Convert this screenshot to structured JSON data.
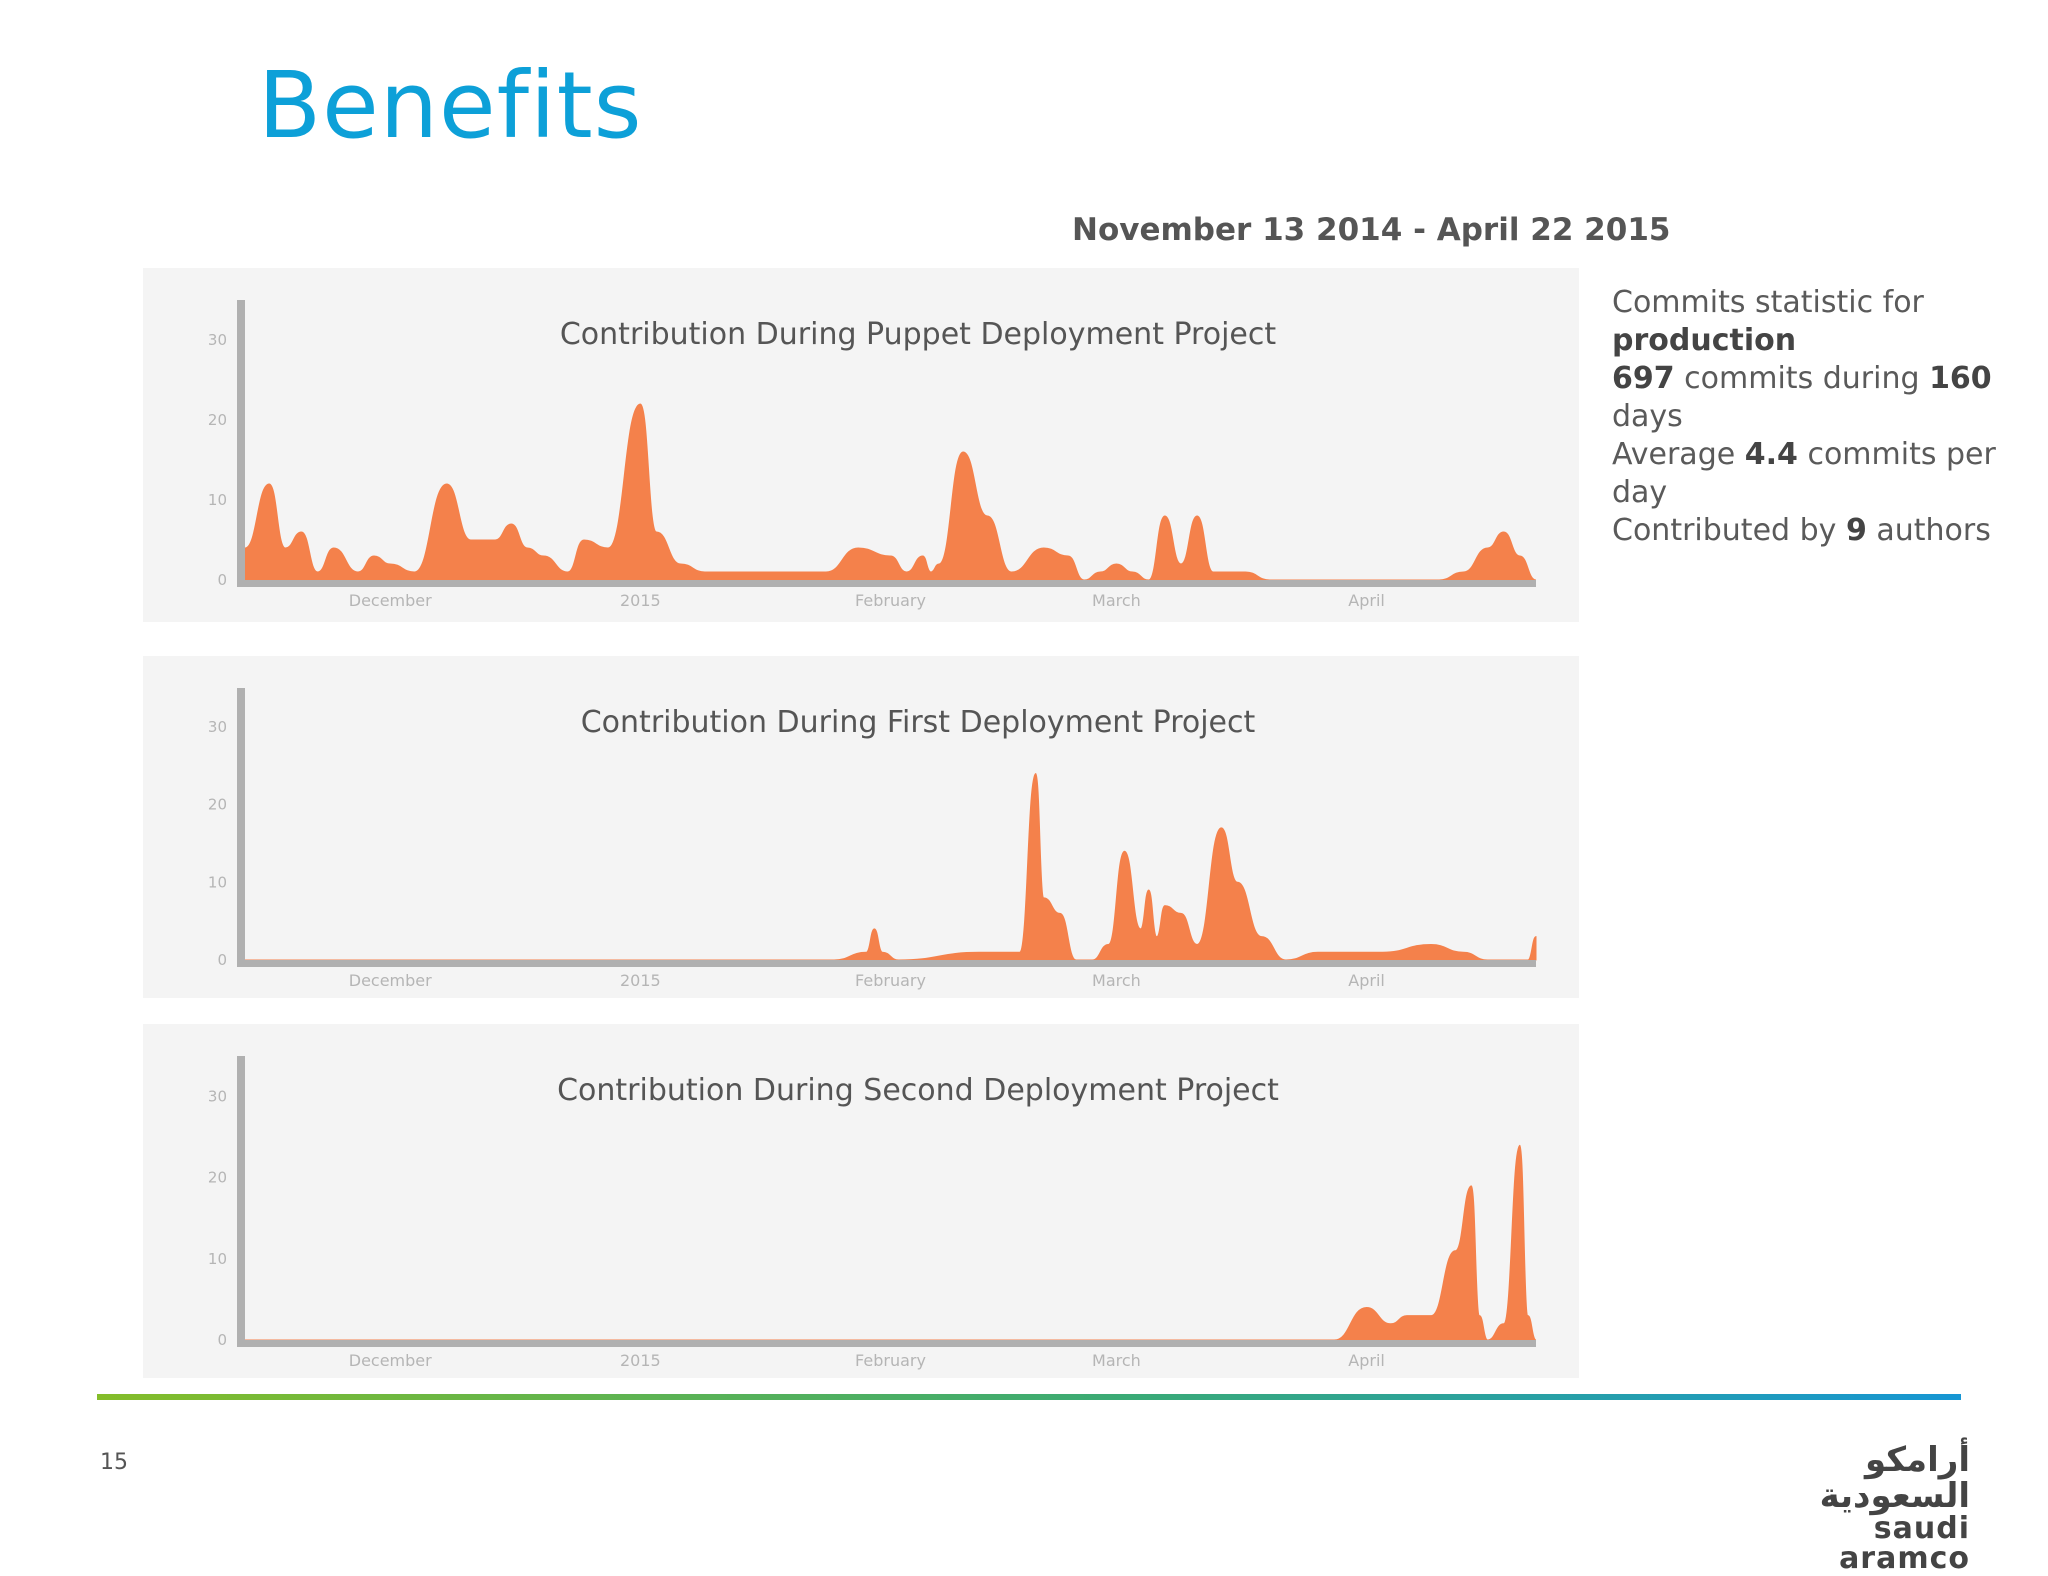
{
  "slide": {
    "title": "Benefits",
    "date_range": "November 13 2014 - April 22 2015",
    "page_number": "15",
    "logo": {
      "arabic": "أرامكو السعودية",
      "english": "saudi aramco"
    }
  },
  "stats": {
    "line1_pre": "Commits statistic for",
    "line1_bold": "production",
    "commits_count": "697",
    "commits_mid": "commits during",
    "days_count": "160",
    "days_label": "days",
    "avg_pre": "Average",
    "avg_value": "4.4",
    "avg_post": "commits per day",
    "contrib_pre": "Contributed by",
    "authors_count": "9",
    "authors_post": "authors"
  },
  "colors": {
    "area": "#f4814b",
    "title": "#0da0d8",
    "axis": "#b0b0b0",
    "panel": "#f4f4f4"
  },
  "chart_data": [
    {
      "type": "area",
      "title": "Contribution During Puppet Deployment Project",
      "x_range": [
        "2014-11-13",
        "2015-04-22"
      ],
      "ylim": [
        0,
        35
      ],
      "y_ticks": [
        0,
        10,
        20,
        30
      ],
      "x_tick_labels": [
        {
          "label": "December",
          "date": "2014-12-01"
        },
        {
          "label": "2015",
          "date": "2015-01-01"
        },
        {
          "label": "February",
          "date": "2015-02-01"
        },
        {
          "label": "March",
          "date": "2015-03-01"
        },
        {
          "label": "April",
          "date": "2015-04-01"
        }
      ],
      "series": [
        {
          "x": [
            "2014-11-13",
            "2014-11-16",
            "2014-11-18",
            "2014-11-20",
            "2014-11-22",
            "2014-11-24",
            "2014-11-27",
            "2014-11-29",
            "2014-12-01",
            "2014-12-04",
            "2014-12-08",
            "2014-12-11",
            "2014-12-14",
            "2014-12-16",
            "2014-12-18",
            "2014-12-20",
            "2014-12-23",
            "2014-12-25",
            "2014-12-28",
            "2015-01-01",
            "2015-01-03",
            "2015-01-06",
            "2015-01-09",
            "2015-01-14",
            "2015-01-24",
            "2015-01-28",
            "2015-02-01",
            "2015-02-03",
            "2015-02-05",
            "2015-02-06",
            "2015-02-07",
            "2015-02-10",
            "2015-02-13",
            "2015-02-16",
            "2015-02-20",
            "2015-02-23",
            "2015-02-25",
            "2015-02-27",
            "2015-03-01",
            "2015-03-03",
            "2015-03-05",
            "2015-03-07",
            "2015-03-09",
            "2015-03-11",
            "2015-03-13",
            "2015-03-15",
            "2015-03-17",
            "2015-03-20",
            "2015-03-23",
            "2015-03-25",
            "2015-04-02",
            "2015-04-05",
            "2015-04-10",
            "2015-04-13",
            "2015-04-16",
            "2015-04-18",
            "2015-04-20",
            "2015-04-22"
          ],
          "values": [
            4,
            12,
            4,
            6,
            1,
            4,
            1,
            3,
            2,
            1,
            12,
            5,
            5,
            7,
            4,
            3,
            1,
            5,
            4,
            22,
            6,
            2,
            1,
            1,
            1,
            4,
            3,
            1,
            3,
            1,
            2,
            16,
            8,
            1,
            4,
            3,
            0,
            1,
            2,
            1,
            0,
            8,
            2,
            8,
            1,
            1,
            1,
            0,
            0,
            0,
            0,
            0,
            0,
            1,
            4,
            6,
            3,
            0
          ]
        }
      ]
    },
    {
      "type": "area",
      "title": "Contribution During First Deployment Project",
      "x_range": [
        "2014-11-13",
        "2015-04-22"
      ],
      "ylim": [
        0,
        35
      ],
      "y_ticks": [
        0,
        10,
        20,
        30
      ],
      "x_tick_labels": [
        {
          "label": "December",
          "date": "2014-12-01"
        },
        {
          "label": "2015",
          "date": "2015-01-01"
        },
        {
          "label": "February",
          "date": "2015-02-01"
        },
        {
          "label": "March",
          "date": "2015-03-01"
        },
        {
          "label": "April",
          "date": "2015-04-01"
        }
      ],
      "series": [
        {
          "x": [
            "2014-11-13",
            "2015-01-25",
            "2015-01-29",
            "2015-01-30",
            "2015-01-31",
            "2015-02-02",
            "2015-02-12",
            "2015-02-17",
            "2015-02-19",
            "2015-02-20",
            "2015-02-22",
            "2015-02-24",
            "2015-02-26",
            "2015-02-28",
            "2015-03-02",
            "2015-03-04",
            "2015-03-05",
            "2015-03-06",
            "2015-03-07",
            "2015-03-09",
            "2015-03-11",
            "2015-03-14",
            "2015-03-16",
            "2015-03-19",
            "2015-03-22",
            "2015-03-26",
            "2015-04-03",
            "2015-04-09",
            "2015-04-13",
            "2015-04-16",
            "2015-04-21",
            "2015-04-22"
          ],
          "values": [
            0,
            0,
            1,
            4,
            1,
            0,
            1,
            1,
            24,
            8,
            6,
            0,
            0,
            2,
            14,
            4,
            9,
            3,
            7,
            6,
            2,
            17,
            10,
            3,
            0,
            1,
            1,
            2,
            1,
            0,
            0,
            3
          ]
        }
      ]
    },
    {
      "type": "area",
      "title": "Contribution During Second Deployment Project",
      "x_range": [
        "2014-11-13",
        "2015-04-22"
      ],
      "ylim": [
        0,
        35
      ],
      "y_ticks": [
        0,
        10,
        20,
        30
      ],
      "x_tick_labels": [
        {
          "label": "December",
          "date": "2014-12-01"
        },
        {
          "label": "2015",
          "date": "2015-01-01"
        },
        {
          "label": "February",
          "date": "2015-02-01"
        },
        {
          "label": "March",
          "date": "2015-03-01"
        },
        {
          "label": "April",
          "date": "2015-04-01"
        }
      ],
      "series": [
        {
          "x": [
            "2014-11-13",
            "2015-03-28",
            "2015-04-01",
            "2015-04-04",
            "2015-04-06",
            "2015-04-09",
            "2015-04-12",
            "2015-04-14",
            "2015-04-15",
            "2015-04-16",
            "2015-04-18",
            "2015-04-20",
            "2015-04-21",
            "2015-04-22"
          ],
          "values": [
            0,
            0,
            4,
            2,
            3,
            3,
            11,
            19,
            3,
            0,
            2,
            24,
            3,
            0
          ]
        }
      ]
    }
  ]
}
